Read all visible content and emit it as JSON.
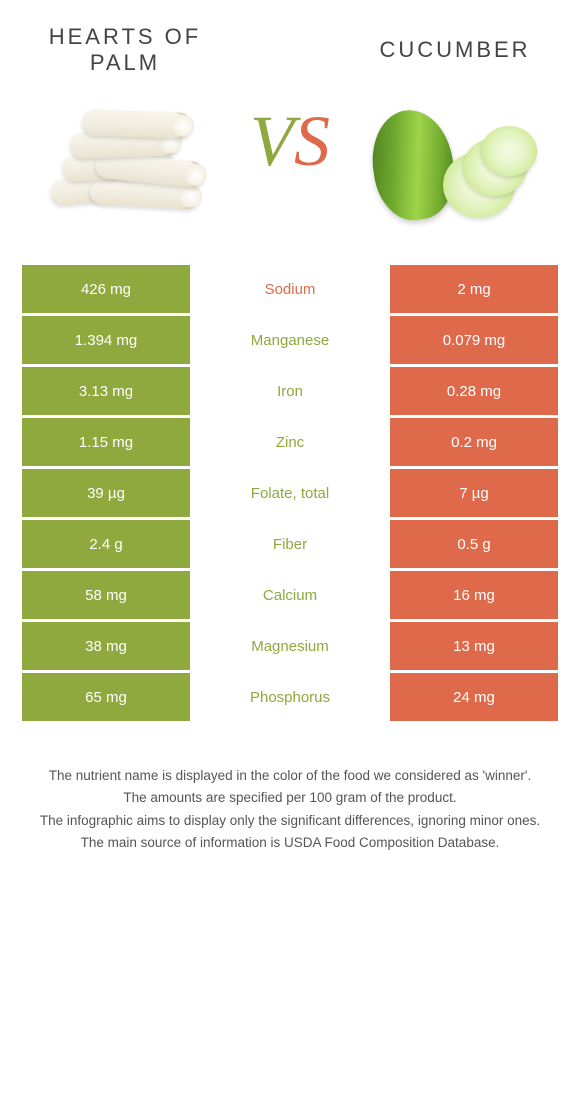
{
  "header": {
    "left_title": "HEARTS OF\nPALM",
    "right_title": "CUCUMBER",
    "vs_v": "V",
    "vs_s": "S"
  },
  "colors": {
    "left": "#8fa93e",
    "right": "#de6a4b",
    "background": "#ffffff",
    "text": "#333333",
    "footer_text": "#555555"
  },
  "table": {
    "rows": [
      {
        "nutrient": "Sodium",
        "left": "426 mg",
        "right": "2 mg",
        "winner": "right"
      },
      {
        "nutrient": "Manganese",
        "left": "1.394 mg",
        "right": "0.079 mg",
        "winner": "left"
      },
      {
        "nutrient": "Iron",
        "left": "3.13 mg",
        "right": "0.28 mg",
        "winner": "left"
      },
      {
        "nutrient": "Zinc",
        "left": "1.15 mg",
        "right": "0.2 mg",
        "winner": "left"
      },
      {
        "nutrient": "Folate, total",
        "left": "39 µg",
        "right": "7 µg",
        "winner": "left"
      },
      {
        "nutrient": "Fiber",
        "left": "2.4 g",
        "right": "0.5 g",
        "winner": "left"
      },
      {
        "nutrient": "Calcium",
        "left": "58 mg",
        "right": "16 mg",
        "winner": "left"
      },
      {
        "nutrient": "Magnesium",
        "left": "38 mg",
        "right": "13 mg",
        "winner": "left"
      },
      {
        "nutrient": "Phosphorus",
        "left": "65 mg",
        "right": "24 mg",
        "winner": "left"
      }
    ]
  },
  "footer": {
    "line1": "The nutrient name is displayed in the color of the food we considered as 'winner'.",
    "line2": "The amounts are specified per 100 gram of the product.",
    "line3": "The infographic aims to display only the significant differences, ignoring minor ones.",
    "line4": "The main source of information is USDA Food Composition Database."
  }
}
